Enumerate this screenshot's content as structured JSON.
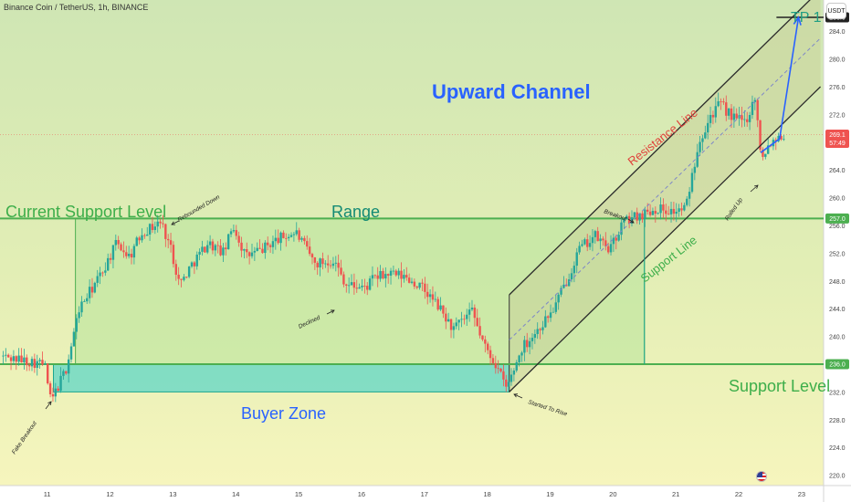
{
  "header": {
    "symbol_title": "Binance Coin / TetherUS, 1h, BINANCE",
    "currency": "USDT"
  },
  "chart_data": {
    "type": "candlestick",
    "symbol": "Binance Coin / TetherUS",
    "interval": "1h",
    "exchange": "BINANCE",
    "ylim": [
      218.5,
      288.5
    ],
    "y_ticks": [
      220,
      224,
      228,
      232,
      236,
      240,
      244,
      248,
      252,
      256,
      260,
      264,
      268,
      272,
      276,
      280,
      284
    ],
    "x_tick_labels": [
      "11",
      "12",
      "13",
      "14",
      "15",
      "16",
      "17",
      "18",
      "19",
      "20",
      "21",
      "22",
      "23"
    ],
    "grid": false,
    "price_labels": [
      {
        "value": 286.0,
        "label": "286.0",
        "color": "#222222"
      },
      {
        "value": 257.0,
        "label": "257.0",
        "color": "#4caf50"
      },
      {
        "value": 236.0,
        "label": "236.0",
        "color": "#4caf50"
      },
      {
        "value": 269.1,
        "label": "269.1",
        "timer": "57:49",
        "color": "#ef5350"
      }
    ],
    "price_path": [
      [
        0,
        240.0
      ],
      [
        8,
        241.0
      ],
      [
        11,
        236.0
      ],
      [
        11.1,
        230.5
      ],
      [
        11.35,
        235.5
      ],
      [
        11.55,
        244.0
      ],
      [
        11.9,
        249.0
      ],
      [
        12.15,
        253.5
      ],
      [
        12.35,
        251.5
      ],
      [
        12.55,
        255.0
      ],
      [
        12.85,
        256.5
      ],
      [
        13.0,
        253.0
      ],
      [
        13.15,
        247.5
      ],
      [
        13.35,
        250.5
      ],
      [
        13.6,
        253.5
      ],
      [
        13.85,
        252.0
      ],
      [
        14.0,
        256.0
      ],
      [
        14.2,
        251.5
      ],
      [
        14.45,
        252.5
      ],
      [
        14.7,
        254.0
      ],
      [
        15.0,
        255.0
      ],
      [
        15.3,
        250.5
      ],
      [
        15.6,
        251.0
      ],
      [
        15.8,
        247.5
      ],
      [
        16.1,
        247.0
      ],
      [
        16.25,
        248.5
      ],
      [
        16.5,
        249.0
      ],
      [
        16.75,
        248.5
      ],
      [
        17.0,
        247.0
      ],
      [
        17.25,
        244.5
      ],
      [
        17.5,
        241.0
      ],
      [
        17.8,
        243.5
      ],
      [
        18.0,
        238.5
      ],
      [
        18.15,
        236.5
      ],
      [
        18.35,
        232.5
      ],
      [
        18.6,
        238.5
      ],
      [
        18.85,
        241.0
      ],
      [
        19.1,
        244.0
      ],
      [
        19.3,
        248.0
      ],
      [
        19.5,
        252.5
      ],
      [
        19.75,
        254.5
      ],
      [
        20.0,
        252.5
      ],
      [
        20.2,
        256.5
      ],
      [
        20.45,
        257.5
      ],
      [
        20.75,
        258.5
      ],
      [
        21.0,
        258.0
      ],
      [
        21.2,
        258.5
      ],
      [
        21.4,
        268.0
      ],
      [
        21.6,
        272.0
      ],
      [
        21.75,
        273.5
      ],
      [
        21.95,
        271.5
      ],
      [
        22.15,
        271.0
      ],
      [
        22.3,
        274.5
      ],
      [
        22.4,
        266.0
      ],
      [
        22.55,
        268.0
      ],
      [
        22.7,
        269.1
      ]
    ],
    "levels": [
      {
        "name": "Current Support Level",
        "value": 257.0
      },
      {
        "name": "Support Level",
        "value": 236.0
      }
    ],
    "zones": [
      {
        "name": "Range",
        "from_x": 11.45,
        "to_x": 20.5,
        "y_low": 236.0,
        "y_high": 257.0
      },
      {
        "name": "Buyer Zone",
        "from_x": 11.1,
        "to_x": 18.35,
        "y_low": 232.0,
        "y_high": 236.0
      }
    ],
    "channel": {
      "name": "Upward Channel",
      "lines": [
        {
          "name": "Resistance Line",
          "from": [
            18.35,
            246.0
          ],
          "to": [
            23.3,
            290.0
          ]
        },
        {
          "name": "Mid Line",
          "from": [
            18.35,
            239.5
          ],
          "to": [
            23.3,
            283.0
          ]
        },
        {
          "name": "Support Line",
          "from": [
            18.35,
            232.0
          ],
          "to": [
            23.3,
            276.0
          ]
        }
      ]
    },
    "projection": [
      [
        22.35,
        266.5
      ],
      [
        22.65,
        268.5
      ],
      [
        22.95,
        286.0
      ]
    ],
    "annotations": {
      "top_right": "TP 1",
      "channel_label": "Upward Channel",
      "current_support": "Current Support Level",
      "range": "Range",
      "support_level": "Support Level",
      "buyer_zone": "Buyer Zone",
      "resistance_line": "Resistance Line",
      "support_line": "Support Line",
      "rebounded_down": "Rebounded Down",
      "declined": "Declined",
      "breakout": "Breakout",
      "rolled_up": "Rolled Up",
      "started_to_rise": "Started To Rise",
      "fake_breakout": "Fake Breakout"
    },
    "colors": {
      "level": "#4caf50",
      "range_fill": "#b7e39a",
      "buyer_fill": "#5fd6c7",
      "channel_fill": "#c9d29a",
      "bull": "#26a69a",
      "bear": "#ef5350",
      "projection": "#2962ff",
      "channel_title": "#2962ff",
      "level_text": "#3dae4a",
      "zone_text": "#138a74",
      "buyer_text": "#2962ff",
      "resistance_text": "#e0433c"
    }
  }
}
